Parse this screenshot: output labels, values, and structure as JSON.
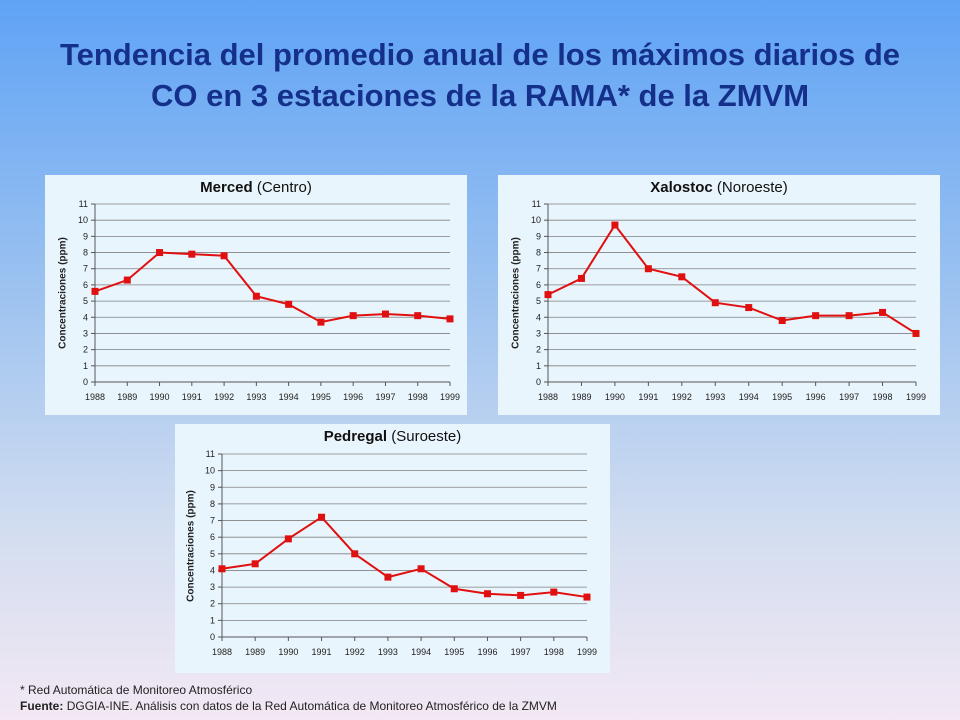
{
  "title": "Tendencia del promedio anual de los máximos diarios de CO en 3 estaciones de la RAMA* de la ZMVM",
  "footnote": "* Red Automática de Monitoreo Atmosférico",
  "source": {
    "label": "Fuente:",
    "text": "DGGIA-INE.  Análisis con datos de la Red Automática de Monitoreo Atmosférico de la ZMVM"
  },
  "colors": {
    "series": "#e01010",
    "grid": "#808080",
    "panel": "#e9f5fc"
  },
  "chart_data": [
    {
      "type": "line",
      "title_bold": "Merced",
      "title_rest": " (Centro)",
      "ylabel": "Concentraciones  (ppm)",
      "ylim": [
        0,
        11
      ],
      "yticks": [
        "0",
        "1",
        "2",
        "3",
        "4",
        "5",
        "6",
        "7",
        "8",
        "9",
        "10",
        "11"
      ],
      "x": [
        "1988",
        "1989",
        "1990",
        "1991",
        "1992",
        "1993",
        "1994",
        "1995",
        "1996",
        "1997",
        "1998",
        "1999"
      ],
      "values": [
        5.6,
        6.3,
        8.0,
        7.9,
        7.8,
        5.3,
        4.8,
        3.7,
        4.1,
        4.2,
        4.1,
        3.9
      ],
      "grid": true,
      "legend": "none"
    },
    {
      "type": "line",
      "title_bold": "Xalostoc",
      "title_rest": " (Noroeste)",
      "ylabel": "Concentraciones  (ppm)",
      "ylim": [
        0,
        11
      ],
      "yticks": [
        "0",
        "1",
        "2",
        "3",
        "4",
        "5",
        "6",
        "7",
        "8",
        "9",
        "10",
        "11"
      ],
      "x": [
        "1988",
        "1989",
        "1990",
        "1991",
        "1992",
        "1993",
        "1994",
        "1995",
        "1996",
        "1997",
        "1998",
        "1999"
      ],
      "values": [
        5.4,
        6.4,
        9.7,
        7.0,
        6.5,
        4.9,
        4.6,
        3.8,
        4.1,
        4.1,
        4.3,
        3.0
      ],
      "grid": true,
      "legend": "none"
    },
    {
      "type": "line",
      "title_bold": "Pedregal",
      "title_rest": " (Suroeste)",
      "ylabel": "Concentraciones  (ppm)",
      "ylim": [
        0,
        11
      ],
      "yticks": [
        "0",
        "1",
        "2",
        "3",
        "4",
        "5",
        "6",
        "7",
        "8",
        "9",
        "10",
        "11"
      ],
      "x": [
        "1988",
        "1989",
        "1990",
        "1991",
        "1992",
        "1993",
        "1994",
        "1995",
        "1996",
        "1997",
        "1998",
        "1999"
      ],
      "values": [
        4.1,
        4.4,
        5.9,
        7.2,
        5.0,
        3.6,
        4.1,
        2.9,
        2.6,
        2.5,
        2.7,
        2.4
      ],
      "grid": true,
      "legend": "none"
    }
  ]
}
